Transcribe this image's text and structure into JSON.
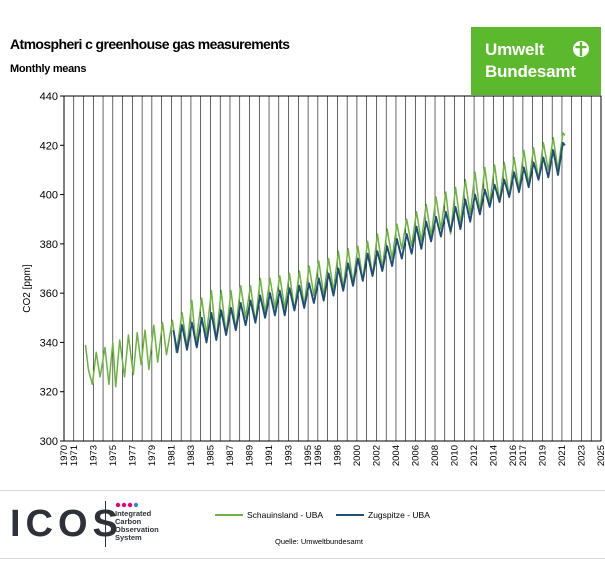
{
  "header": {
    "title": "Atmospheri c greenhouse gas measurements",
    "subtitle": "Monthly means"
  },
  "logo_uba": {
    "line1": "Umwelt",
    "line2": "Bundesamt",
    "icon": "uba-globe-icon"
  },
  "logo_icos": {
    "letters": "ICOS",
    "tagline": "Integrated\nCarbon\nObservation\nSystem",
    "dot_colors": [
      "#e6007e",
      "#e6007e",
      "#e6007e",
      "#3f88c5",
      "#3f88c5",
      "#3f88c5",
      "#e23a3a",
      "#e23a3a"
    ]
  },
  "legend": {
    "series_a": "Schauinsland - UBA",
    "series_b": "Zugspitze - UBA"
  },
  "source": "Quelle: Umweltbundesamt",
  "colors": {
    "series_a": "#6db33f",
    "series_b": "#1f4e79",
    "uba_green": "#5cb82c",
    "grid": "#000000"
  },
  "chart_data": {
    "type": "line",
    "title": "Atmospheri c greenhouse gas measurements",
    "subtitle": "Monthly means",
    "ylabel": "CO2 [ppm]",
    "xlabel": "",
    "xlim": [
      1970,
      2025
    ],
    "ylim": [
      300,
      440
    ],
    "yticks": [
      300,
      320,
      340,
      360,
      380,
      400,
      420,
      440
    ],
    "xticks": [
      1970,
      1971,
      1973,
      1975,
      1977,
      1979,
      1981,
      1983,
      1985,
      1987,
      1989,
      1991,
      1993,
      1995,
      1996,
      1998,
      2000,
      2002,
      2004,
      2006,
      2008,
      2010,
      2012,
      2014,
      2016,
      2017,
      2019,
      2021,
      2023,
      2025
    ],
    "grid": "vertical",
    "series": [
      {
        "name": "Schauinsland - UBA",
        "color": "#6db33f",
        "x": [
          1972.2,
          1972.5,
          1972.9,
          1973.3,
          1973.7,
          1974.2,
          1974.6,
          1975.0,
          1975.3,
          1975.7,
          1976.2,
          1976.6,
          1977.1,
          1977.5,
          1977.9,
          1978.3,
          1978.7,
          1979.2,
          1979.6,
          1980.1,
          1980.5,
          1981.1,
          1981.5,
          1982.1,
          1982.6,
          1983.1,
          1983.5,
          1984.1,
          1984.6,
          1985.1,
          1985.6,
          1986.1,
          1986.6,
          1987.1,
          1987.6,
          1988.1,
          1988.6,
          1989.1,
          1989.6,
          1990.1,
          1990.6,
          1991.1,
          1991.6,
          1992.1,
          1992.6,
          1993.1,
          1993.6,
          1994.1,
          1994.6,
          1995.1,
          1995.6,
          1996.1,
          1996.6,
          1997.1,
          1997.6,
          1998.1,
          1998.6,
          1999.1,
          1999.6,
          2000.1,
          2000.6,
          2001.1,
          2001.6,
          2002.1,
          2002.6,
          2003.1,
          2003.6,
          2004.1,
          2004.6,
          2005.1,
          2005.6,
          2006.1,
          2006.6,
          2007.1,
          2007.6,
          2008.1,
          2008.6,
          2009.1,
          2009.6,
          2010.1,
          2010.6,
          2011.1,
          2011.6,
          2012.1,
          2012.6,
          2013.1,
          2013.6,
          2014.1,
          2014.6,
          2015.1,
          2015.6,
          2016.1,
          2016.6,
          2017.1,
          2017.6,
          2018.1,
          2018.6,
          2019.1,
          2019.6,
          2020.1,
          2020.6,
          2021.1,
          2021.3
        ],
        "values": [
          339,
          329,
          323,
          336,
          326,
          338,
          323,
          340,
          322,
          341,
          326,
          343,
          327,
          344,
          331,
          345,
          329,
          347,
          332,
          348,
          335,
          349,
          336,
          352,
          338,
          357,
          339,
          358,
          343,
          361,
          341,
          361,
          343,
          361,
          345,
          363,
          350,
          363,
          348,
          366,
          352,
          366,
          354,
          367,
          354,
          368,
          353,
          369,
          355,
          371,
          359,
          373,
          359,
          374,
          361,
          377,
          362,
          378,
          364,
          379,
          365,
          381,
          367,
          384,
          370,
          386,
          374,
          388,
          378,
          390,
          379,
          393,
          381,
          396,
          383,
          399,
          386,
          401,
          384,
          403,
          388,
          406,
          392,
          409,
          393,
          411,
          396,
          412,
          397,
          413,
          399,
          415,
          402,
          418,
          404,
          419,
          406,
          421,
          410,
          423,
          410,
          425,
          424
        ]
      },
      {
        "name": "Zugspitze - UBA",
        "color": "#1f4e79",
        "x": [
          1981.2,
          1981.6,
          1982.1,
          1982.6,
          1983.1,
          1983.6,
          1984.1,
          1984.6,
          1985.1,
          1985.6,
          1986.1,
          1986.6,
          1987.1,
          1987.6,
          1988.1,
          1988.6,
          1989.1,
          1989.6,
          1990.1,
          1990.6,
          1991.1,
          1991.6,
          1992.1,
          1992.6,
          1993.1,
          1993.6,
          1994.1,
          1994.6,
          1995.1,
          1995.6,
          1996.1,
          1996.6,
          1997.1,
          1997.6,
          1998.1,
          1998.6,
          1999.1,
          1999.6,
          2000.1,
          2000.6,
          2001.1,
          2001.6,
          2002.1,
          2002.6,
          2003.1,
          2003.6,
          2004.1,
          2004.6,
          2005.1,
          2005.6,
          2006.1,
          2006.6,
          2007.1,
          2007.6,
          2008.1,
          2008.6,
          2009.1,
          2009.6,
          2010.1,
          2010.6,
          2011.1,
          2011.6,
          2012.1,
          2012.6,
          2013.1,
          2013.6,
          2014.1,
          2014.6,
          2015.1,
          2015.6,
          2016.1,
          2016.6,
          2017.1,
          2017.6,
          2018.1,
          2018.6,
          2019.1,
          2019.6,
          2020.1,
          2020.6,
          2021.1,
          2021.3
        ],
        "values": [
          345,
          336,
          347,
          337,
          348,
          338,
          350,
          340,
          352,
          341,
          353,
          343,
          354,
          345,
          356,
          347,
          357,
          348,
          359,
          350,
          360,
          351,
          361,
          351,
          362,
          353,
          363,
          354,
          364,
          356,
          366,
          357,
          368,
          359,
          370,
          361,
          372,
          363,
          374,
          365,
          376,
          367,
          377,
          369,
          379,
          371,
          382,
          374,
          384,
          376,
          387,
          378,
          389,
          381,
          391,
          383,
          393,
          385,
          395,
          386,
          398,
          389,
          400,
          392,
          402,
          395,
          404,
          397,
          406,
          399,
          409,
          401,
          411,
          403,
          413,
          406,
          415,
          407,
          418,
          408,
          421,
          420
        ]
      }
    ]
  }
}
